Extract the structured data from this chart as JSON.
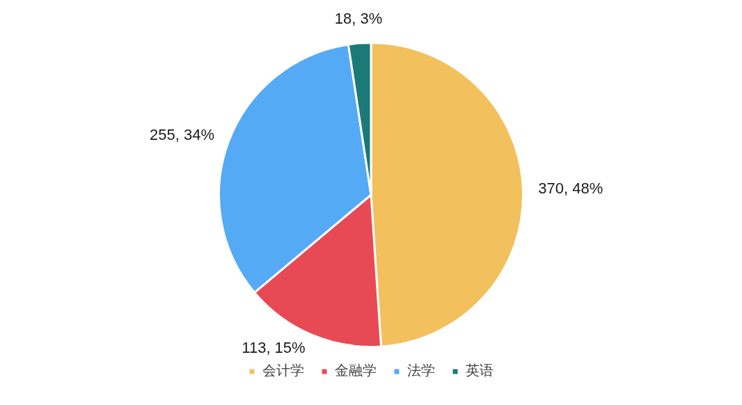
{
  "chart_data": {
    "type": "pie",
    "categories": [
      "会计学",
      "金融学",
      "法学",
      "英语"
    ],
    "values": [
      370,
      113,
      255,
      18
    ],
    "colors": [
      "#f2c05c",
      "#e84a55",
      "#55aaf5",
      "#1a7a78"
    ],
    "value_labels": [
      "370, 48%",
      "113, 15%",
      "255, 34%",
      "18, 3%"
    ],
    "legend": "bottom"
  }
}
